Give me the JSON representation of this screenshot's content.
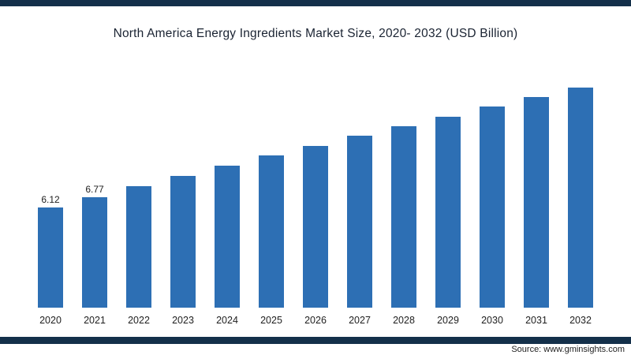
{
  "page": {
    "source_label": "Source: www.gminsights.com"
  },
  "colors": {
    "bar": "#2d6fb4",
    "accent": "#14304a",
    "title_text": "#1a2332",
    "axis_text": "#1e1e1e"
  },
  "chart_data": {
    "type": "bar",
    "title": "North America Energy Ingredients Market Size, 2020- 2032 (USD Billion)",
    "categories": [
      "2020",
      "2021",
      "2022",
      "2023",
      "2024",
      "2025",
      "2026",
      "2027",
      "2028",
      "2029",
      "2030",
      "2031",
      "2032"
    ],
    "values": [
      6.12,
      6.77,
      7.45,
      8.05,
      8.7,
      9.3,
      9.9,
      10.5,
      11.1,
      11.7,
      12.3,
      12.9,
      13.5
    ],
    "data_labels": [
      "6.12",
      "6.77",
      "",
      "",
      "",
      "",
      "",
      "",
      "",
      "",
      "",
      "",
      ""
    ],
    "xlabel": "",
    "ylabel": "",
    "ylim": [
      0,
      14
    ],
    "grid": false,
    "legend": false
  }
}
